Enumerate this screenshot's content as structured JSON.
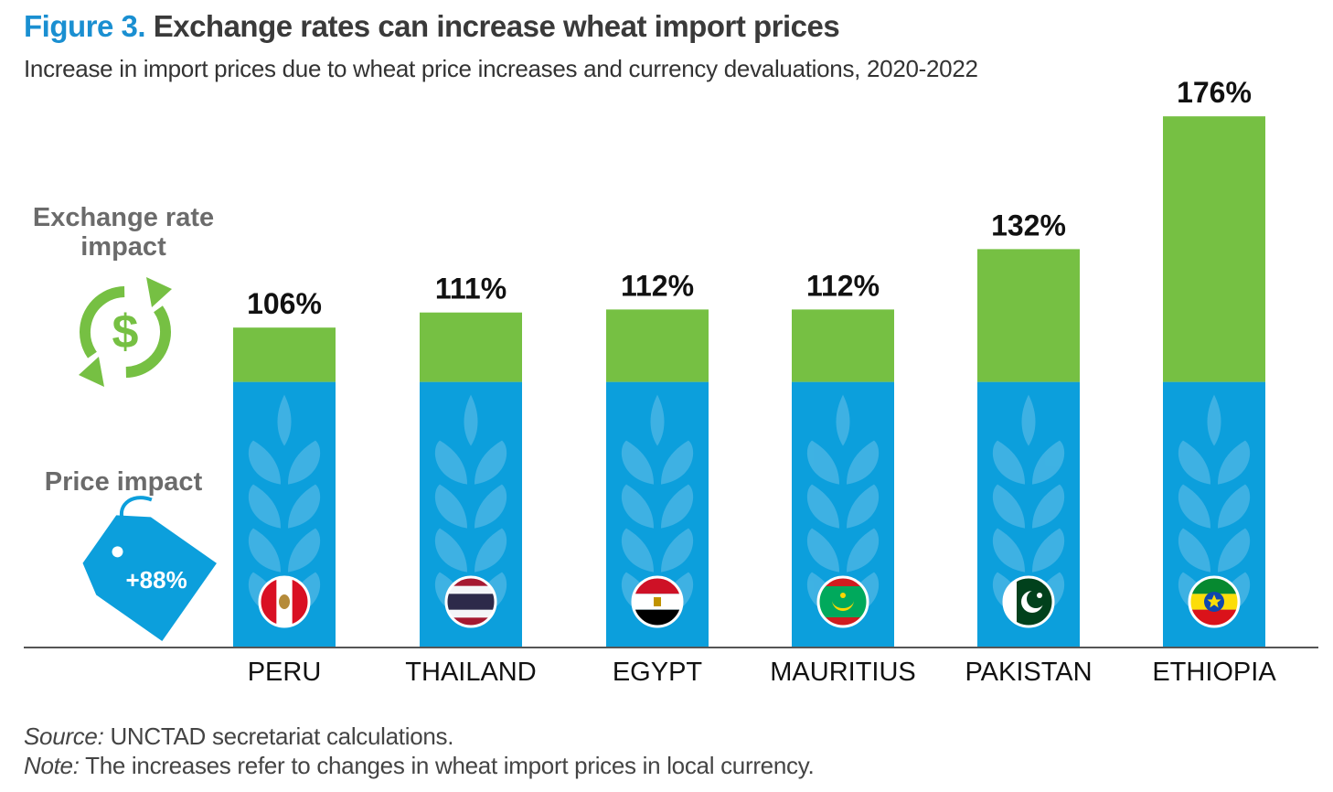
{
  "figure_label": "Figure 3.",
  "title": "Exchange rates can increase wheat import prices",
  "subtitle": "Increase in import prices due to wheat price increases and currency devaluations, 2020-2022",
  "legend": {
    "exchange_rate": "Exchange rate impact",
    "price": "Price impact",
    "price_tag": "+88%"
  },
  "source_label": "Source:",
  "source_text": " UNCTAD secretariat calculations.",
  "note_label": "Note:",
  "note_text": " The increases refer to changes in wheat import prices in local currency.",
  "colors": {
    "price": "#0c9fdc",
    "exchange": "#76c043",
    "axis": "#555555",
    "wheat": "#4fb8e6"
  },
  "chart_data": {
    "type": "bar",
    "stacked": true,
    "title": "Exchange rates can increase wheat import prices",
    "categories": [
      "PERU",
      "THAILAND",
      "EGYPT",
      "MAURITIUS",
      "PAKISTAN",
      "ETHIOPIA"
    ],
    "series": [
      {
        "name": "Price impact",
        "values": [
          88,
          88,
          88,
          88,
          88,
          88
        ]
      },
      {
        "name": "Exchange rate impact",
        "values": [
          18,
          23,
          24,
          24,
          44,
          88
        ]
      }
    ],
    "totals": [
      106,
      111,
      112,
      112,
      132,
      176
    ],
    "total_labels": [
      "106%",
      "111%",
      "112%",
      "112%",
      "132%",
      "176%"
    ],
    "flags": [
      "peru-flag",
      "thailand-flag",
      "egypt-flag",
      "mauritania-flag",
      "pakistan-flag",
      "ethiopia-flag"
    ],
    "ylim": [
      0,
      176
    ]
  }
}
